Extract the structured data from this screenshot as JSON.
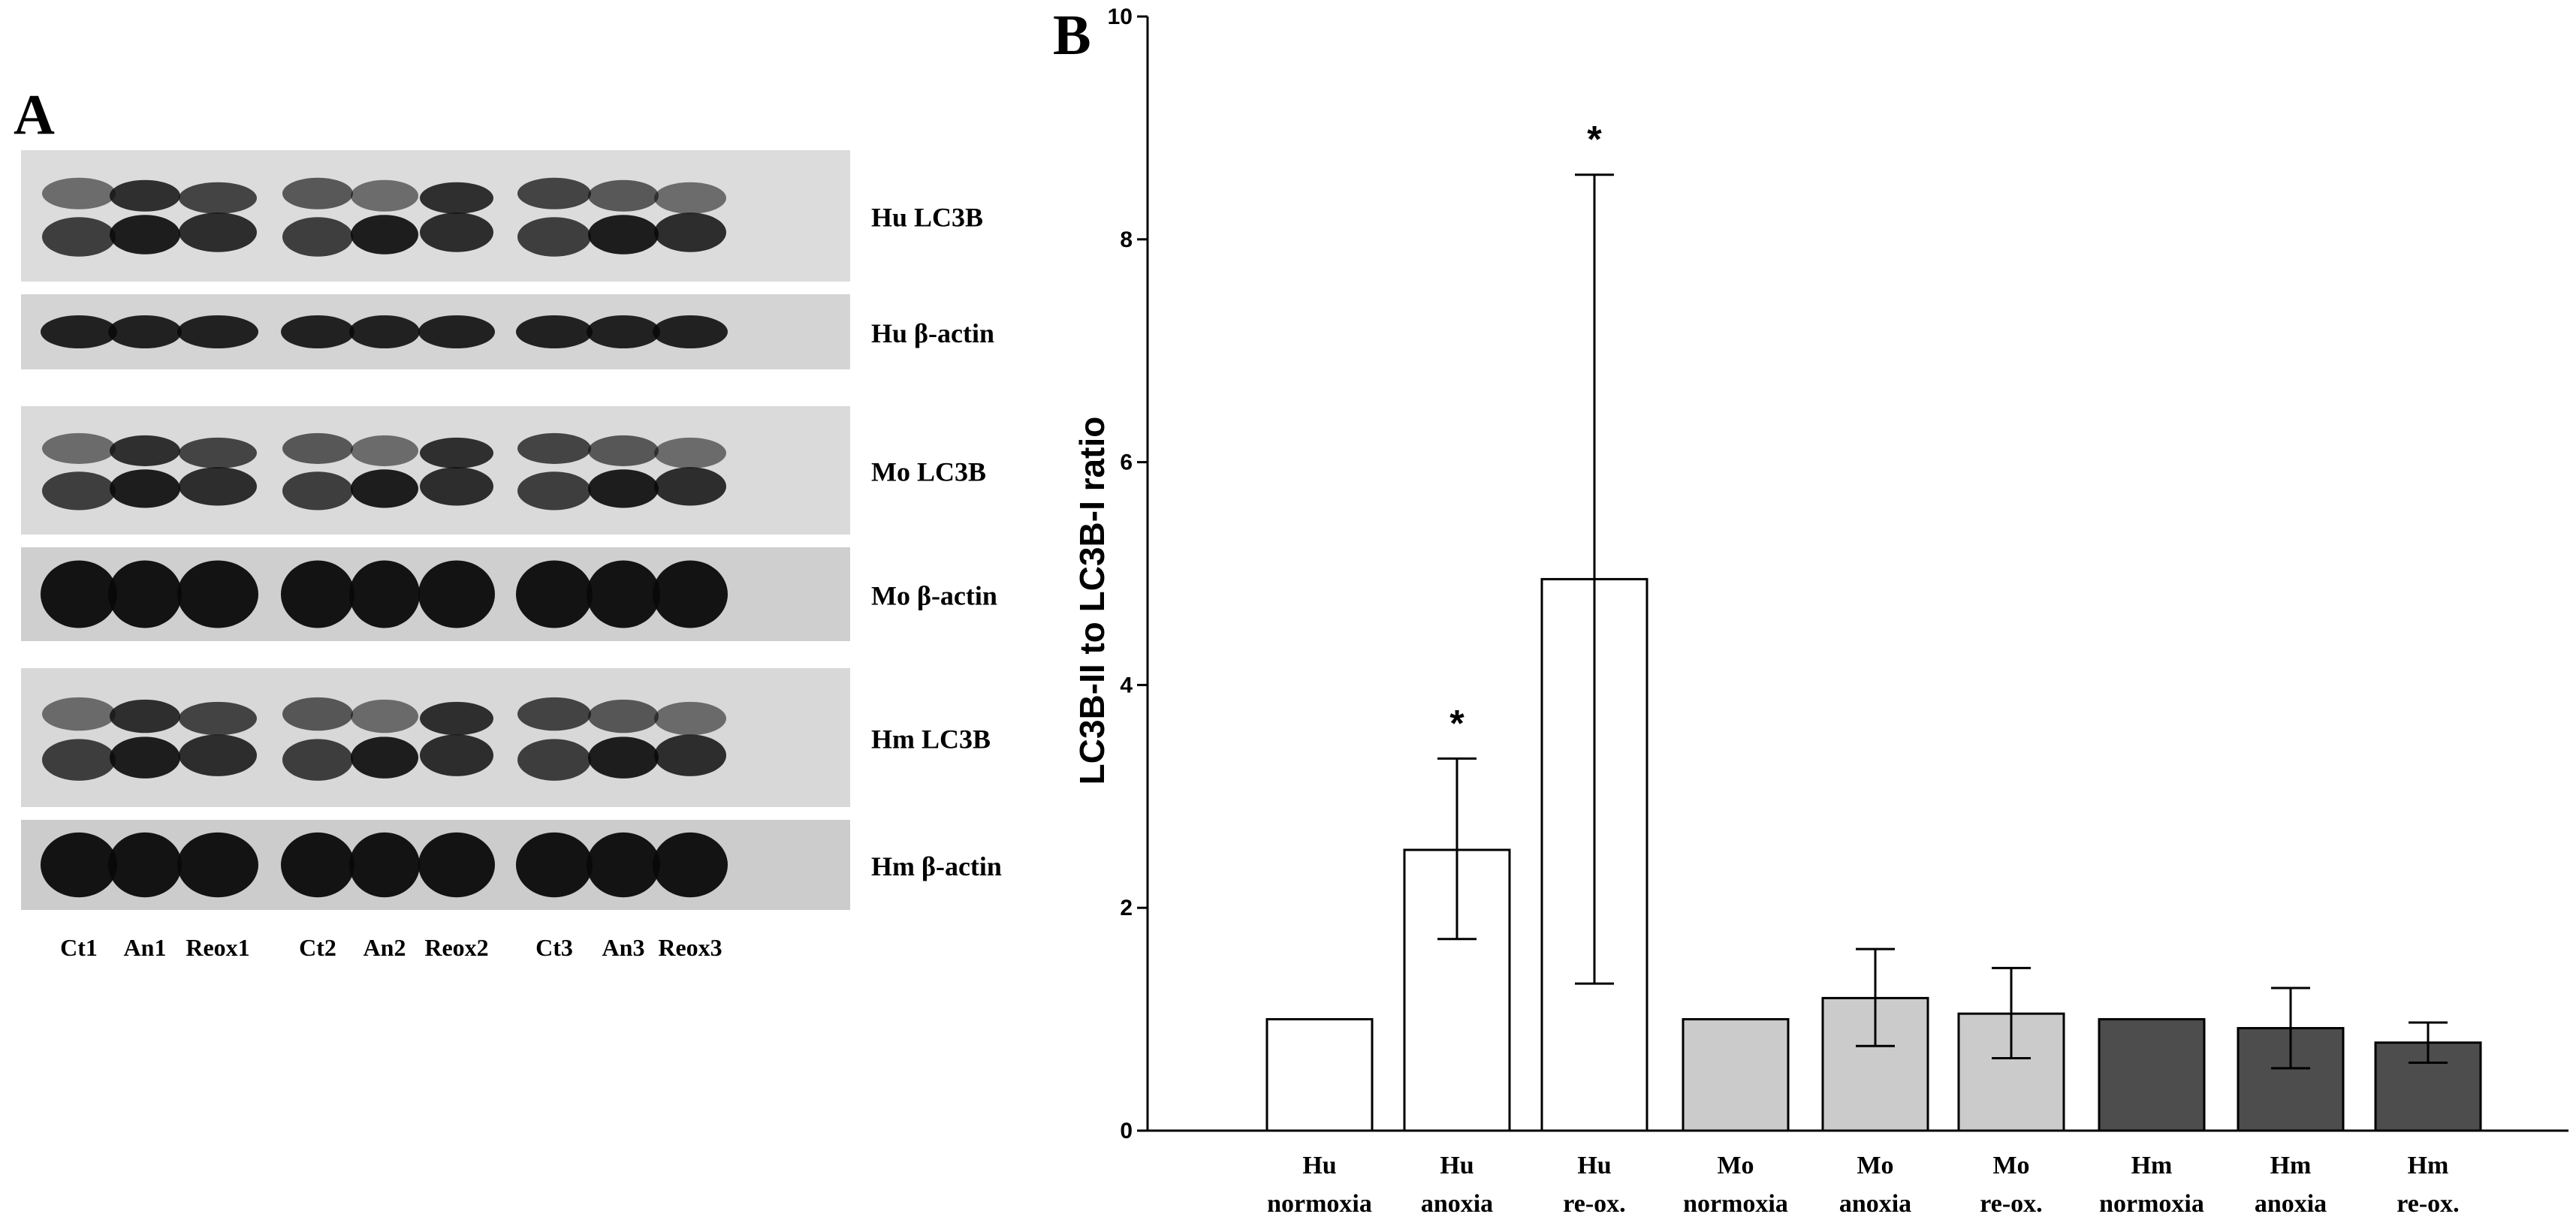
{
  "panel_a": {
    "label": "A",
    "blots": [
      {
        "label": "Hu LC3B",
        "type": "double",
        "bg": "#dcdcdc"
      },
      {
        "label": "Hu β-actin",
        "type": "single",
        "bg": "#d4d4d4"
      },
      {
        "label": "Mo LC3B",
        "type": "double",
        "bg": "#dadada"
      },
      {
        "label": "Mo β-actin",
        "type": "single-heavy",
        "bg": "#cfcfcf"
      },
      {
        "label": "Hm LC3B",
        "type": "double",
        "bg": "#d8d8d8"
      },
      {
        "label": "Hm β-actin",
        "type": "single-heavy",
        "bg": "#cccccc"
      }
    ],
    "lanes": [
      "Ct1",
      "An1",
      "Reox1",
      "Ct2",
      "An2",
      "Reox2",
      "Ct3",
      "An3",
      "Reox3"
    ]
  },
  "chart_data": {
    "type": "bar",
    "panel_label": "B",
    "ylabel": "LC3B-II to LC3B-I ratio",
    "ylim": [
      0,
      10
    ],
    "yticks": [
      0,
      2,
      4,
      6,
      8,
      10
    ],
    "categories": [
      {
        "line1": "Hu",
        "line2": "normoxia"
      },
      {
        "line1": "Hu",
        "line2": "anoxia"
      },
      {
        "line1": "Hu",
        "line2": "re-ox."
      },
      {
        "line1": "Mo",
        "line2": "normoxia"
      },
      {
        "line1": "Mo",
        "line2": "anoxia"
      },
      {
        "line1": "Mo",
        "line2": "re-ox."
      },
      {
        "line1": "Hm",
        "line2": "normoxia"
      },
      {
        "line1": "Hm",
        "line2": "anoxia"
      },
      {
        "line1": "Hm",
        "line2": "re-ox."
      }
    ],
    "values": [
      1.0,
      2.52,
      4.95,
      1.0,
      1.19,
      1.05,
      1.0,
      0.92,
      0.79
    ],
    "err_low": [
      1.0,
      1.72,
      1.32,
      1.0,
      0.76,
      0.65,
      1.0,
      0.56,
      0.61
    ],
    "err_high": [
      1.0,
      3.34,
      8.58,
      1.0,
      1.63,
      1.46,
      1.0,
      1.28,
      0.97
    ],
    "significance": [
      "",
      "*",
      "*",
      "",
      "",
      "",
      "",
      "",
      ""
    ],
    "colors": [
      "#ffffff",
      "#ffffff",
      "#ffffff",
      "#cbcbcb",
      "#cbcbcb",
      "#cbcbcb",
      "#4d4d4d",
      "#4d4d4d",
      "#4d4d4d"
    ],
    "grid": false,
    "legend": "none"
  }
}
